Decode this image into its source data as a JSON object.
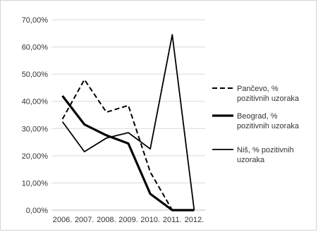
{
  "chart_data": {
    "type": "line",
    "title": "",
    "xlabel": "",
    "ylabel": "",
    "categories": [
      "2006.",
      "2007.",
      "2008.",
      "2009.",
      "2010.",
      "2011.",
      "2012."
    ],
    "ylim": [
      0,
      70
    ],
    "yticks": [
      "0,00%",
      "10,00%",
      "20,00%",
      "30,00%",
      "40,00%",
      "50,00%",
      "60,00%",
      "70,00%"
    ],
    "grid": true,
    "legend_position": "right",
    "series": [
      {
        "name": "Pančevo, % pozitivnih uzoraka",
        "legend_lines": [
          "Pančevo, %",
          "pozitivnih uzoraka"
        ],
        "style": "dashed",
        "values": [
          33.5,
          48,
          36,
          38.5,
          14,
          0,
          null
        ]
      },
      {
        "name": "Beograd, % pozitivnih uzoraka",
        "legend_lines": [
          "Beograd, %",
          "pozitivnih uzoraka"
        ],
        "style": "thick",
        "values": [
          42,
          31.5,
          27.5,
          24.5,
          6,
          0,
          0
        ]
      },
      {
        "name": "Niš, % pozitivnih uzoraka",
        "legend_lines": [
          "Niš, % pozitivnih",
          "uzoraka"
        ],
        "style": "thin",
        "values": [
          32.5,
          21.5,
          26.5,
          28.5,
          22.5,
          64.5,
          0
        ]
      }
    ],
    "colors": {
      "line": "#000000",
      "grid": "#d9d9d9",
      "axis": "#bfbfbf"
    }
  }
}
